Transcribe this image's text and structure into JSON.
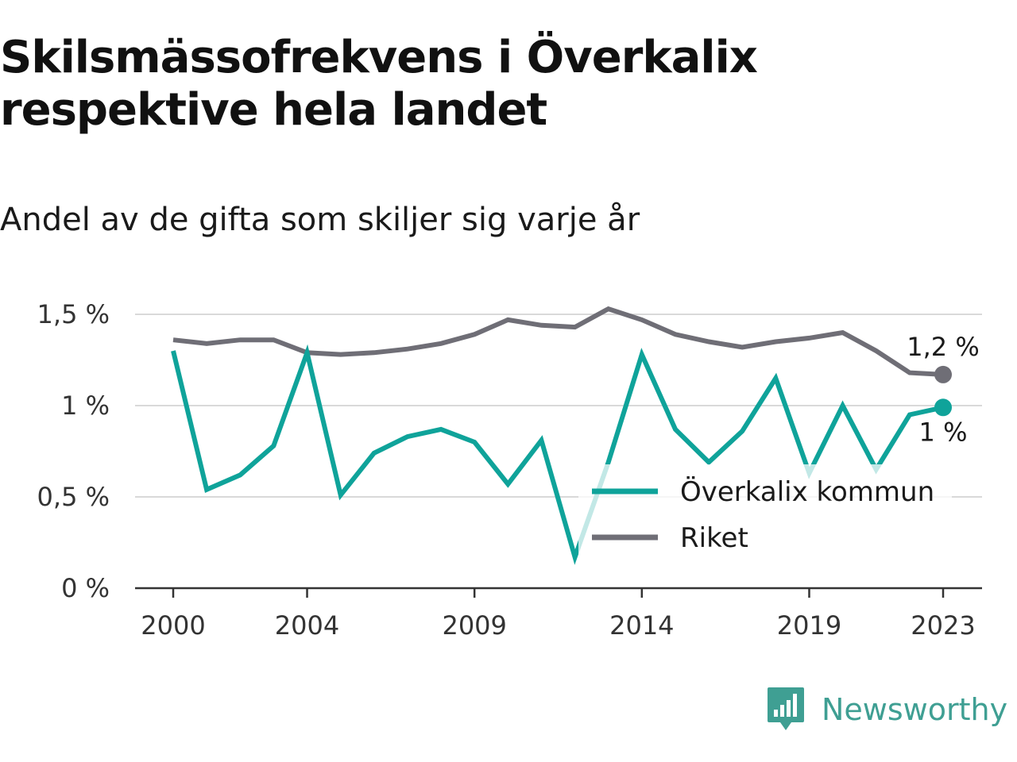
{
  "header": {
    "title": "Skilsmässofrekvens i Överkalix respektive hela landet",
    "subtitle": "Andel av de gifta som skiljer sig varje år"
  },
  "brand": {
    "name": "Newsworthy",
    "icon": "bar-chart-speech-bubble-icon",
    "color": "#3f9f93"
  },
  "chart_data": {
    "type": "line",
    "x": [
      2000,
      2001,
      2002,
      2003,
      2004,
      2005,
      2006,
      2007,
      2008,
      2009,
      2010,
      2011,
      2012,
      2013,
      2014,
      2015,
      2016,
      2017,
      2018,
      2019,
      2020,
      2021,
      2022,
      2023
    ],
    "series": [
      {
        "name": "Överkalix kommun",
        "color": "#0fa39a",
        "values": [
          1.3,
          0.54,
          0.62,
          0.78,
          1.29,
          0.51,
          0.74,
          0.83,
          0.87,
          0.8,
          0.57,
          0.81,
          0.17,
          0.69,
          1.28,
          0.87,
          0.69,
          0.86,
          1.15,
          0.63,
          1.0,
          0.65,
          0.95,
          0.99
        ],
        "end_label": "1 %"
      },
      {
        "name": "Riket",
        "color": "#6f6e76",
        "values": [
          1.36,
          1.34,
          1.36,
          1.36,
          1.29,
          1.28,
          1.29,
          1.31,
          1.34,
          1.39,
          1.47,
          1.44,
          1.43,
          1.53,
          1.47,
          1.39,
          1.35,
          1.32,
          1.35,
          1.37,
          1.4,
          1.3,
          1.18,
          1.17
        ],
        "end_label": "1,2 %"
      }
    ],
    "x_ticks": [
      2000,
      2004,
      2009,
      2014,
      2019,
      2023
    ],
    "x_tick_labels": [
      "2000",
      "2004",
      "2009",
      "2014",
      "2019",
      "2023"
    ],
    "y_ticks": [
      0,
      0.5,
      1,
      1.5
    ],
    "y_tick_labels": [
      "0 %",
      "0,5 %",
      "1 %",
      "1,5 %"
    ],
    "xlim": [
      2000,
      2023
    ],
    "ylim": [
      0,
      1.5
    ],
    "grid": "horizontal",
    "legend": "inside-right"
  }
}
